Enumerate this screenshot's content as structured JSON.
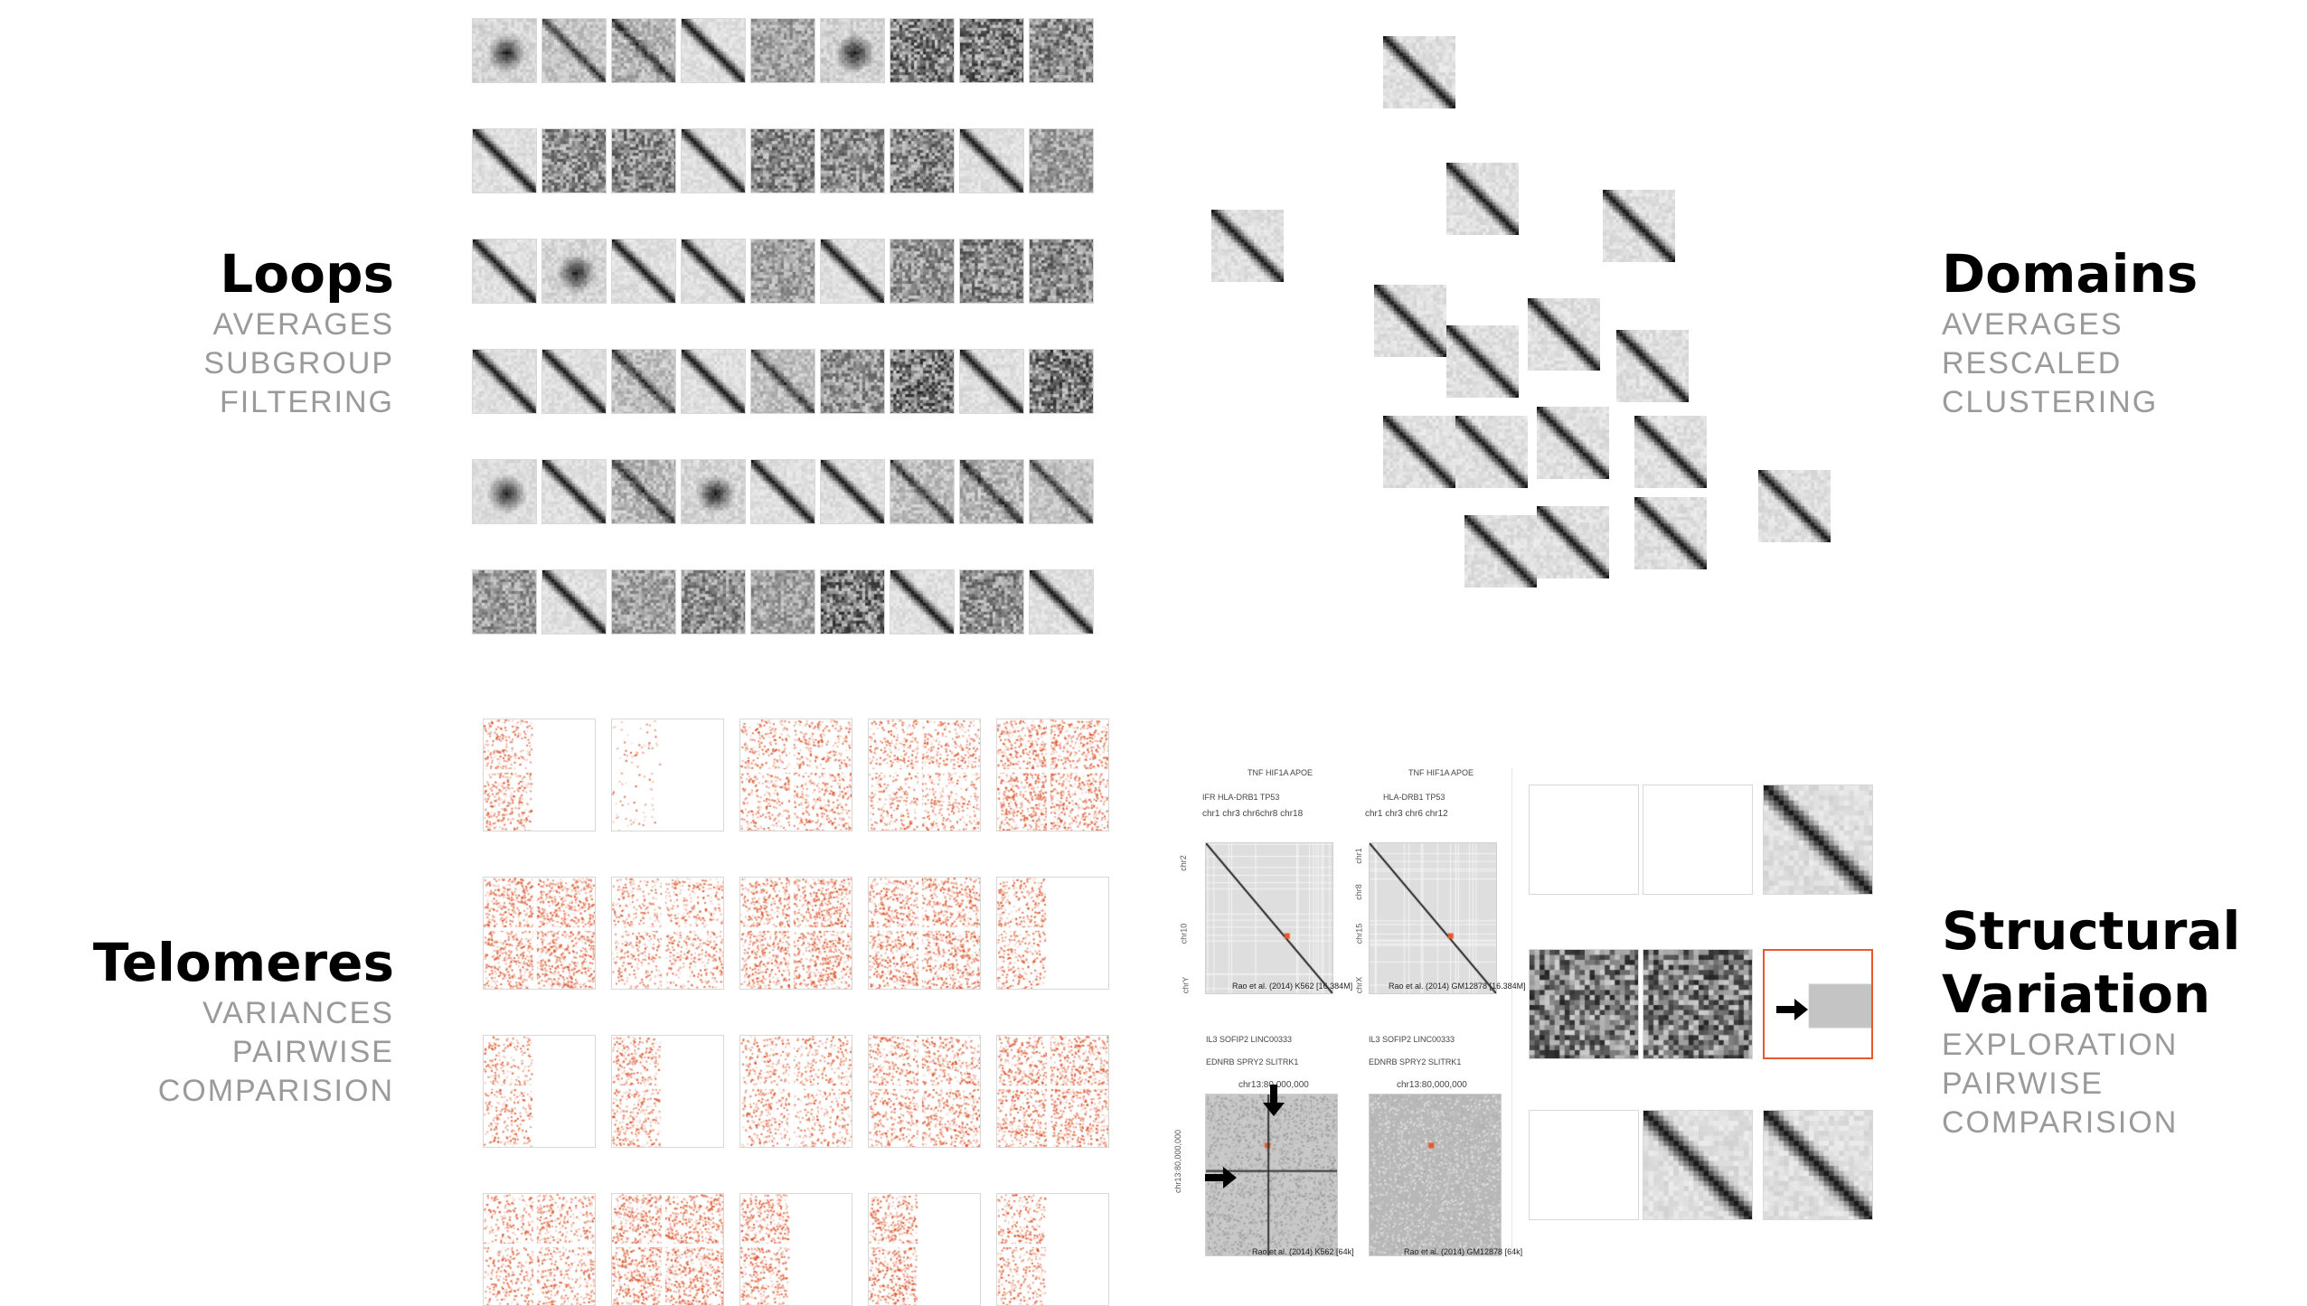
{
  "sections": {
    "loops": {
      "title": "Loops",
      "subs": [
        "AVERAGES",
        "SUBGROUP",
        "FILTERING"
      ]
    },
    "domains": {
      "title": "Domains",
      "subs": [
        "AVERAGES",
        "RESCALED",
        "CLUSTERING"
      ]
    },
    "telomeres": {
      "title": "Telomeres",
      "subs": [
        "VARIANCES",
        "PAIRWISE",
        "COMPARISION"
      ]
    },
    "sv": {
      "title_line1": "Structural",
      "title_line2": "Variation",
      "subs": [
        "EXPLORATION",
        "PAIRWISE",
        "COMPARISION"
      ]
    }
  },
  "sv_panels": {
    "tl": {
      "genes_top": "TNF        HIF1A  APOE",
      "genes_mid": "IFR       HLA-DRB1          TP53",
      "chroms": "chr1  chr3   chr6chr8          chr18",
      "axis_top": "chr2",
      "axis_mid": "chr10",
      "axis_bot": "chrY",
      "caption": "Rao et al. (2014) K562 [16.384M]"
    },
    "tr": {
      "genes_top": "TNF        HIF1A  APOE",
      "genes_mid": "HLA-DRB1          TP53",
      "chroms": "chr1  chr3   chr6   chr12",
      "axis_top": "chr1",
      "axis_mid": "chr8",
      "axis_mid2": "chr15",
      "axis_bot": "chrX",
      "caption": "Rao et al. (2014) GM12878 [16.384M]"
    },
    "bl": {
      "genes_top": "IL3        SOFIP2          LINC00333",
      "genes_mid": "EDNRB    SPRY2      SLITRK1",
      "coord": "chr13:80,000,000",
      "axis_left": "chr13:80,000,000",
      "caption": "Rao et al. (2014) K562 [64k]"
    },
    "br": {
      "genes_top": "IL3        SOFIP2          LINC00333",
      "genes_mid": "EDNRB    SPRY2      SLITRK1",
      "coord": "chr13:80,000,000",
      "caption": "Rao et al. (2014) GM12878 [64k]"
    }
  },
  "colors": {
    "accent": "#e8582a",
    "title": "#000000",
    "sub": "#9a9a9a",
    "heatmap_dark": "#000000",
    "heatmap_red": "#d84315"
  }
}
